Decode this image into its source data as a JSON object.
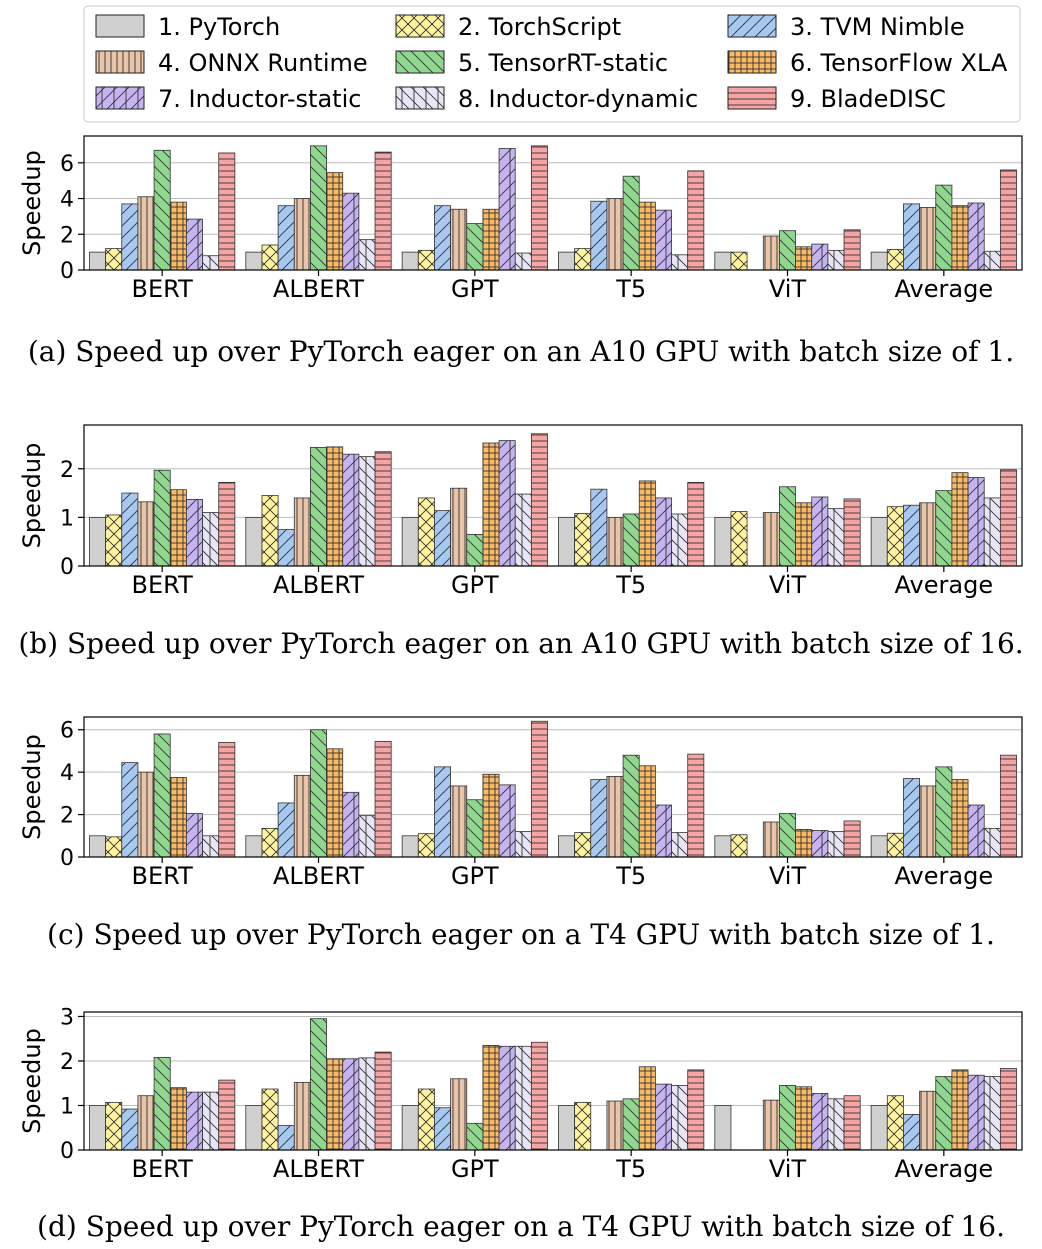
{
  "legend": {
    "items": [
      {
        "label": "1. PyTorch",
        "color": "#d0d0d0",
        "hatch": "none"
      },
      {
        "label": "2. TorchScript",
        "color": "#fff3a0",
        "hatch": "cross"
      },
      {
        "label": "3. TVM Nimble",
        "color": "#a8c8f0",
        "hatch": "slash"
      },
      {
        "label": "4. ONNX Runtime",
        "color": "#e8c4a8",
        "hatch": "vline"
      },
      {
        "label": "5. TensorRT-static",
        "color": "#8ed88e",
        "hatch": "back"
      },
      {
        "label": "6. TensorFlow XLA",
        "color": "#fbbb66",
        "hatch": "grid"
      },
      {
        "label": "7. Inductor-static",
        "color": "#c6b4f0",
        "hatch": "slashv"
      },
      {
        "label": "8. Inductor-dynamic",
        "color": "#e8e6f6",
        "hatch": "backv"
      },
      {
        "label": "9. BladeDISC",
        "color": "#f7a4a4",
        "hatch": "hline"
      }
    ]
  },
  "chart_data": [
    {
      "type": "bar",
      "caption": "(a) Speed up over PyTorch eager on an A10 GPU with batch size of 1.",
      "ylabel": "Speedup",
      "categories": [
        "BERT",
        "ALBERT",
        "GPT",
        "T5",
        "ViT",
        "Average"
      ],
      "ylim": [
        0,
        7.5
      ],
      "yticks": [
        0,
        2,
        4,
        6
      ],
      "grid": true,
      "series": [
        {
          "name": "1. PyTorch",
          "values": [
            1.0,
            1.0,
            1.0,
            1.0,
            1.0,
            1.0
          ]
        },
        {
          "name": "2. TorchScript",
          "values": [
            1.2,
            1.4,
            1.1,
            1.2,
            1.0,
            1.15
          ]
        },
        {
          "name": "3. TVM Nimble",
          "values": [
            3.7,
            3.6,
            3.6,
            3.85,
            null,
            3.7
          ]
        },
        {
          "name": "4. ONNX Runtime",
          "values": [
            4.1,
            4.0,
            3.4,
            4.0,
            1.9,
            3.5
          ]
        },
        {
          "name": "5. TensorRT-static",
          "values": [
            6.7,
            6.95,
            2.6,
            5.25,
            2.2,
            4.75
          ]
        },
        {
          "name": "6. TensorFlow XLA",
          "values": [
            3.8,
            5.45,
            3.4,
            3.8,
            1.3,
            3.6
          ]
        },
        {
          "name": "7. Inductor-static",
          "values": [
            2.85,
            4.3,
            6.8,
            3.35,
            1.45,
            3.75
          ]
        },
        {
          "name": "8. Inductor-dynamic",
          "values": [
            0.8,
            1.7,
            0.95,
            0.85,
            1.1,
            1.05
          ]
        },
        {
          "name": "9. BladeDISC",
          "values": [
            6.55,
            6.6,
            6.95,
            5.55,
            2.25,
            5.6
          ]
        }
      ]
    },
    {
      "type": "bar",
      "caption": "(b) Speed up over PyTorch eager on an A10 GPU with batch size of 16.",
      "ylabel": "Speedup",
      "categories": [
        "BERT",
        "ALBERT",
        "GPT",
        "T5",
        "ViT",
        "Average"
      ],
      "ylim": [
        0,
        2.9
      ],
      "yticks": [
        0,
        1,
        2
      ],
      "grid": true,
      "series": [
        {
          "name": "1. PyTorch",
          "values": [
            1.0,
            1.0,
            1.0,
            1.0,
            1.0,
            1.0
          ]
        },
        {
          "name": "2. TorchScript",
          "values": [
            1.05,
            1.45,
            1.4,
            1.08,
            1.12,
            1.22
          ]
        },
        {
          "name": "3. TVM Nimble",
          "values": [
            1.5,
            0.75,
            1.14,
            1.58,
            null,
            1.25
          ]
        },
        {
          "name": "4. ONNX Runtime",
          "values": [
            1.32,
            1.4,
            1.6,
            1.0,
            1.1,
            1.3
          ]
        },
        {
          "name": "5. TensorRT-static",
          "values": [
            1.97,
            2.44,
            0.65,
            1.07,
            1.63,
            1.55
          ]
        },
        {
          "name": "6. TensorFlow XLA",
          "values": [
            1.57,
            2.45,
            2.53,
            1.75,
            1.3,
            1.92
          ]
        },
        {
          "name": "7. Inductor-static",
          "values": [
            1.37,
            2.3,
            2.58,
            1.4,
            1.42,
            1.82
          ]
        },
        {
          "name": "8. Inductor-dynamic",
          "values": [
            1.1,
            2.25,
            1.48,
            1.07,
            1.18,
            1.4
          ]
        },
        {
          "name": "9. BladeDISC",
          "values": [
            1.72,
            2.35,
            2.72,
            1.72,
            1.38,
            1.98
          ]
        }
      ]
    },
    {
      "type": "bar",
      "caption": "(c) Speed up over PyTorch eager on a T4 GPU with batch size of 1.",
      "ylabel": "Speedup",
      "categories": [
        "BERT",
        "ALBERT",
        "GPT",
        "T5",
        "ViT",
        "Average"
      ],
      "ylim": [
        0,
        6.6
      ],
      "yticks": [
        0,
        2,
        4,
        6
      ],
      "grid": true,
      "series": [
        {
          "name": "1. PyTorch",
          "values": [
            1.0,
            1.0,
            1.0,
            1.0,
            1.0,
            1.0
          ]
        },
        {
          "name": "2. TorchScript",
          "values": [
            0.95,
            1.35,
            1.1,
            1.15,
            1.05,
            1.12
          ]
        },
        {
          "name": "3. TVM Nimble",
          "values": [
            4.45,
            2.55,
            4.25,
            3.65,
            null,
            3.7
          ]
        },
        {
          "name": "4. ONNX Runtime",
          "values": [
            4.0,
            3.85,
            3.35,
            3.8,
            1.65,
            3.35
          ]
        },
        {
          "name": "5. TensorRT-static",
          "values": [
            5.8,
            6.0,
            2.7,
            4.8,
            2.05,
            4.25
          ]
        },
        {
          "name": "6. TensorFlow XLA",
          "values": [
            3.75,
            5.1,
            3.9,
            4.3,
            1.3,
            3.65
          ]
        },
        {
          "name": "7. Inductor-static",
          "values": [
            2.05,
            3.05,
            3.4,
            2.45,
            1.25,
            2.45
          ]
        },
        {
          "name": "8. Inductor-dynamic",
          "values": [
            1.0,
            1.95,
            1.2,
            1.15,
            1.2,
            1.35
          ]
        },
        {
          "name": "9. BladeDISC",
          "values": [
            5.4,
            5.45,
            6.4,
            4.85,
            1.7,
            4.8
          ]
        }
      ]
    },
    {
      "type": "bar",
      "caption": "(d) Speed up over PyTorch eager on a T4 GPU with batch size of 16.",
      "ylabel": "Speedup",
      "categories": [
        "BERT",
        "ALBERT",
        "GPT",
        "T5",
        "ViT",
        "Average"
      ],
      "ylim": [
        0,
        3.1
      ],
      "yticks": [
        0,
        1,
        2,
        3
      ],
      "grid": true,
      "series": [
        {
          "name": "1. PyTorch",
          "values": [
            1.0,
            1.0,
            1.0,
            1.0,
            1.0,
            1.0
          ]
        },
        {
          "name": "2. TorchScript",
          "values": [
            1.07,
            1.37,
            1.37,
            1.07,
            null,
            1.22
          ]
        },
        {
          "name": "3. TVM Nimble",
          "values": [
            0.92,
            0.55,
            0.95,
            null,
            null,
            0.8
          ]
        },
        {
          "name": "4. ONNX Runtime",
          "values": [
            1.22,
            1.52,
            1.6,
            1.1,
            1.12,
            1.32
          ]
        },
        {
          "name": "5. TensorRT-static",
          "values": [
            2.08,
            2.95,
            0.6,
            1.15,
            1.45,
            1.65
          ]
        },
        {
          "name": "6. TensorFlow XLA",
          "values": [
            1.4,
            2.05,
            2.35,
            1.87,
            1.42,
            1.8
          ]
        },
        {
          "name": "7. Inductor-static",
          "values": [
            1.3,
            2.05,
            2.33,
            1.48,
            1.27,
            1.68
          ]
        },
        {
          "name": "8. Inductor-dynamic",
          "values": [
            1.3,
            2.07,
            2.33,
            1.45,
            1.15,
            1.65
          ]
        },
        {
          "name": "9. BladeDISC",
          "values": [
            1.57,
            2.2,
            2.42,
            1.8,
            1.22,
            1.83
          ]
        }
      ]
    }
  ]
}
